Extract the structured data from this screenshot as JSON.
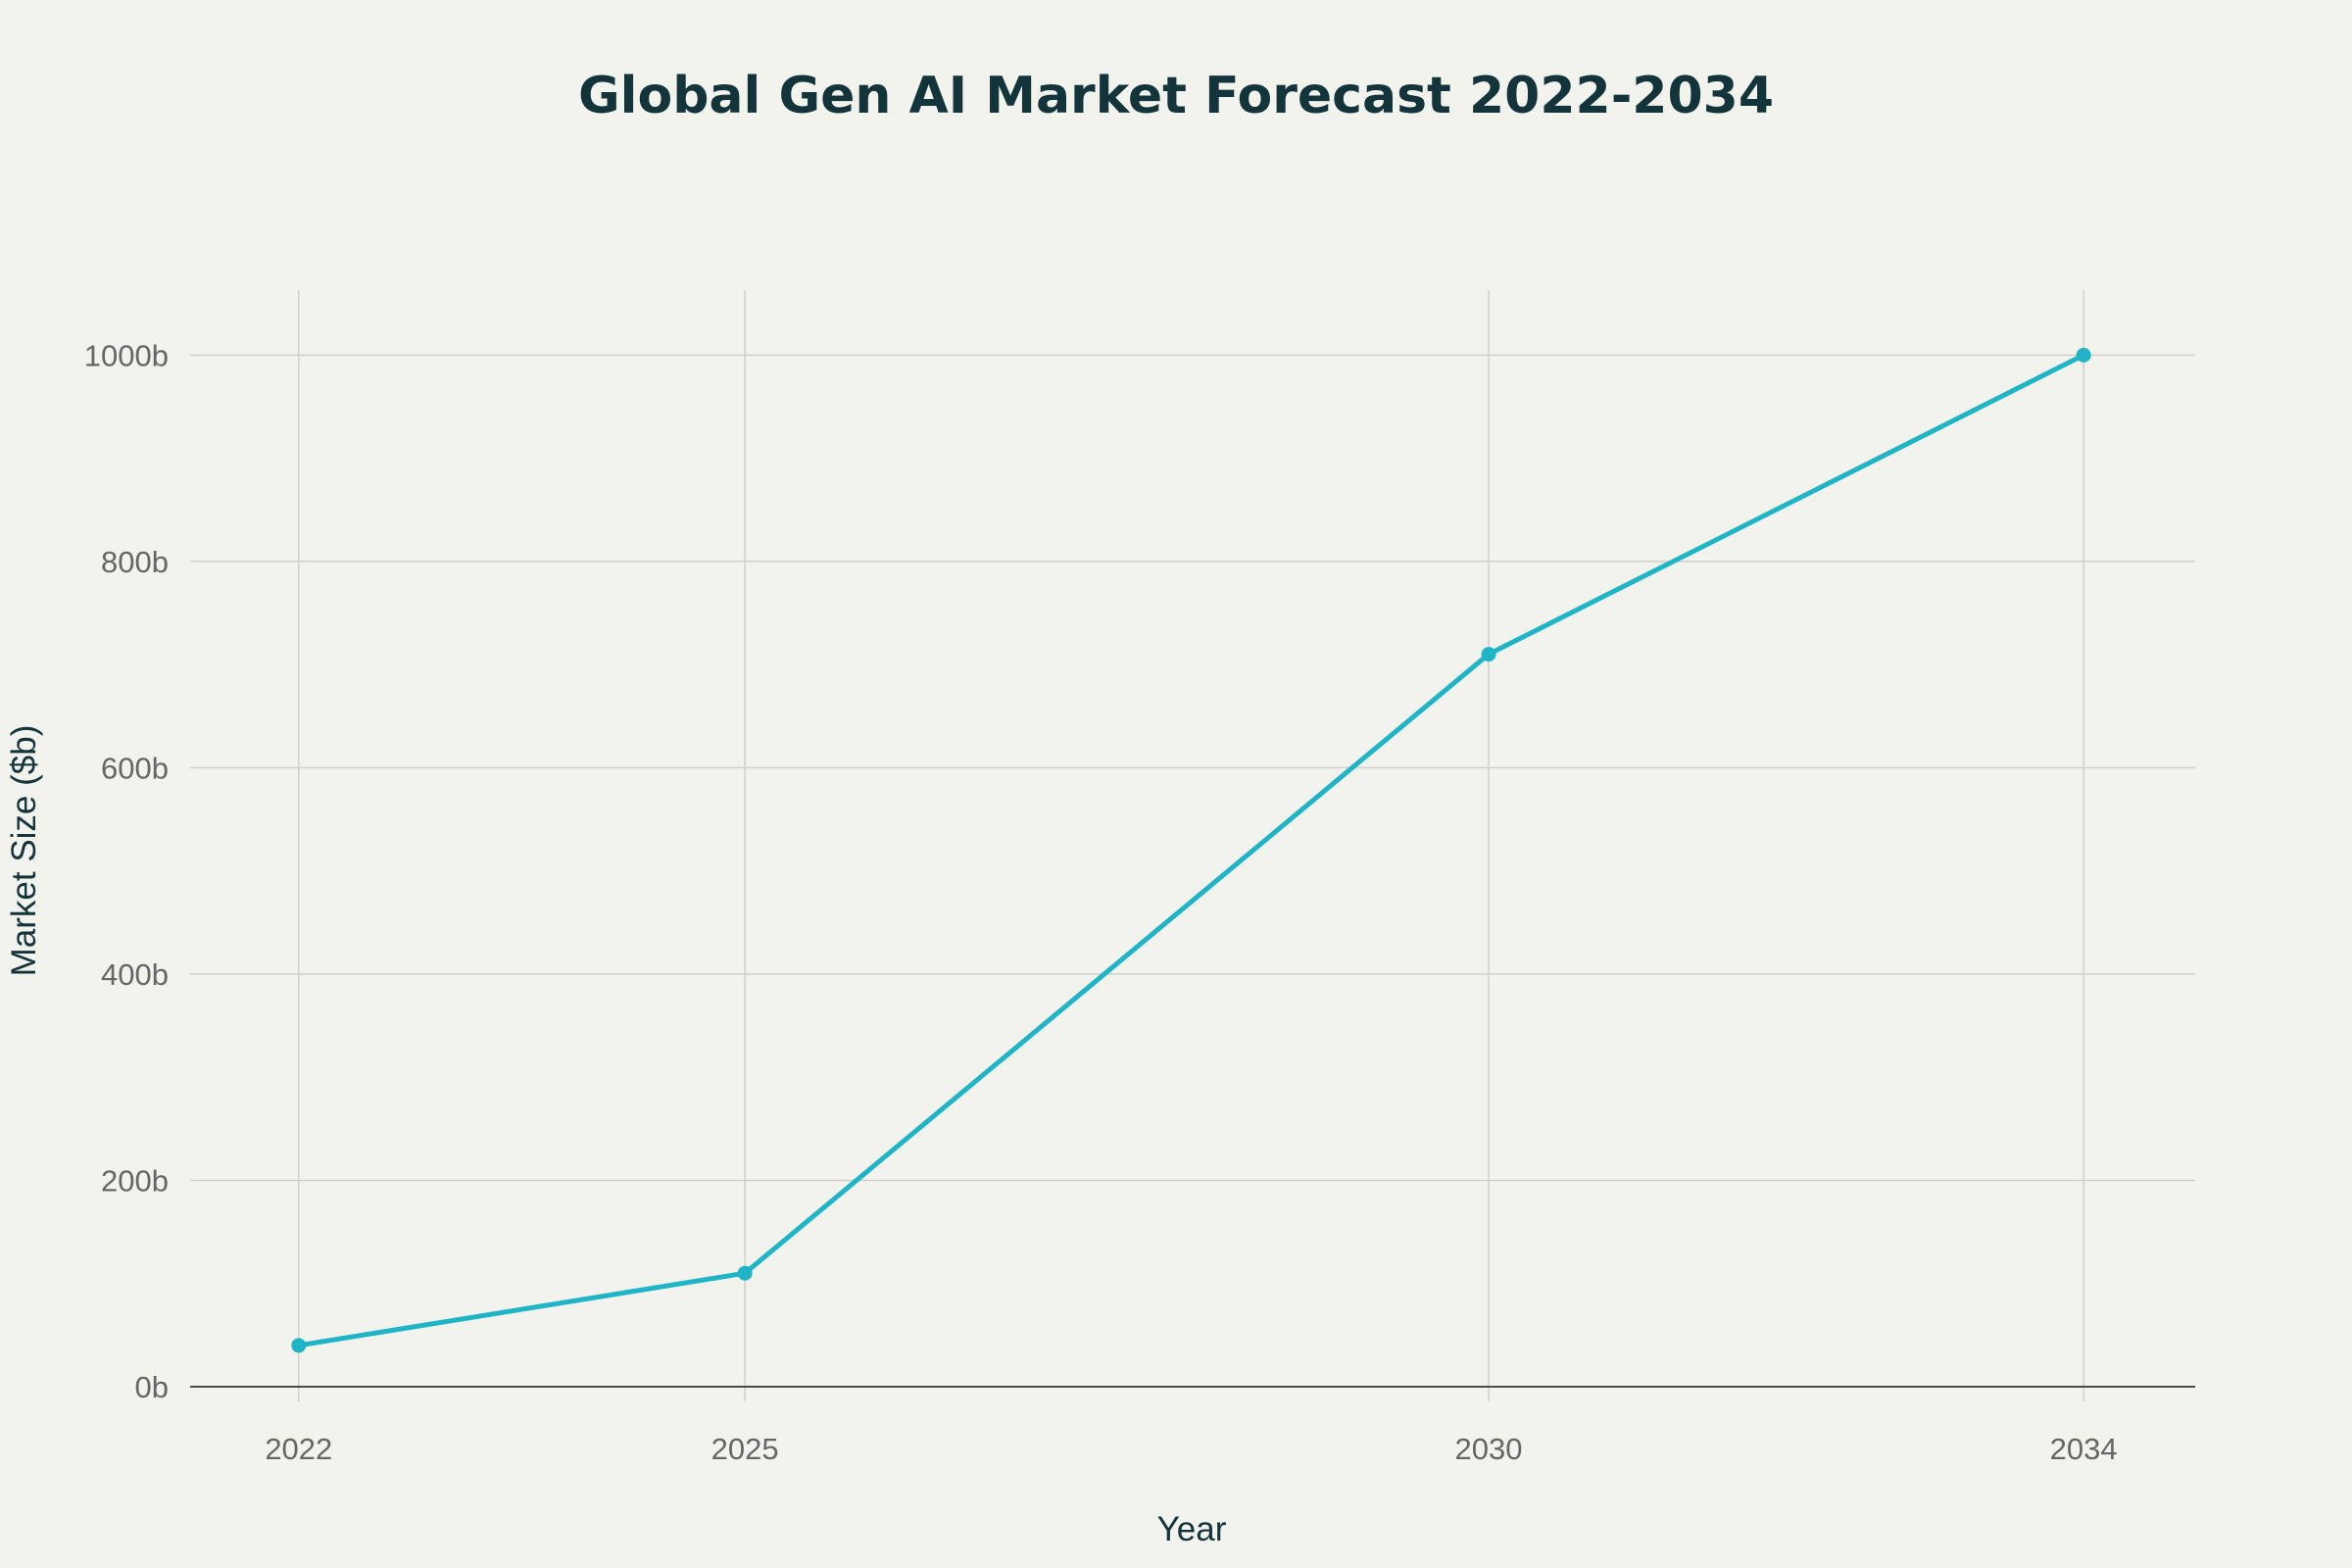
{
  "chart_data": {
    "type": "line",
    "title": "Global Gen AI Market Forecast 2022-2034",
    "xlabel": "Year",
    "ylabel": "Market Size ($b)",
    "x": [
      2022,
      2025,
      2030,
      2034
    ],
    "x_tick_labels": [
      "2022",
      "2025",
      "2030",
      "2034"
    ],
    "xlim": [
      2021.27,
      2034.75
    ],
    "ylim": [
      0,
      1063
    ],
    "y_ticks": [
      0,
      200,
      400,
      600,
      800,
      1000
    ],
    "y_tick_labels": [
      "0b",
      "200b",
      "400b",
      "600b",
      "800b",
      "1000b"
    ],
    "series": [
      {
        "values": [
          40,
          110,
          710,
          1000
        ]
      }
    ],
    "grid": true,
    "legend": "none",
    "colors": {
      "line": "#1fb4c6",
      "background": "#f3f3ee",
      "grid": "#cfd0cb",
      "title": "#13343b",
      "tick": "#666666"
    }
  }
}
